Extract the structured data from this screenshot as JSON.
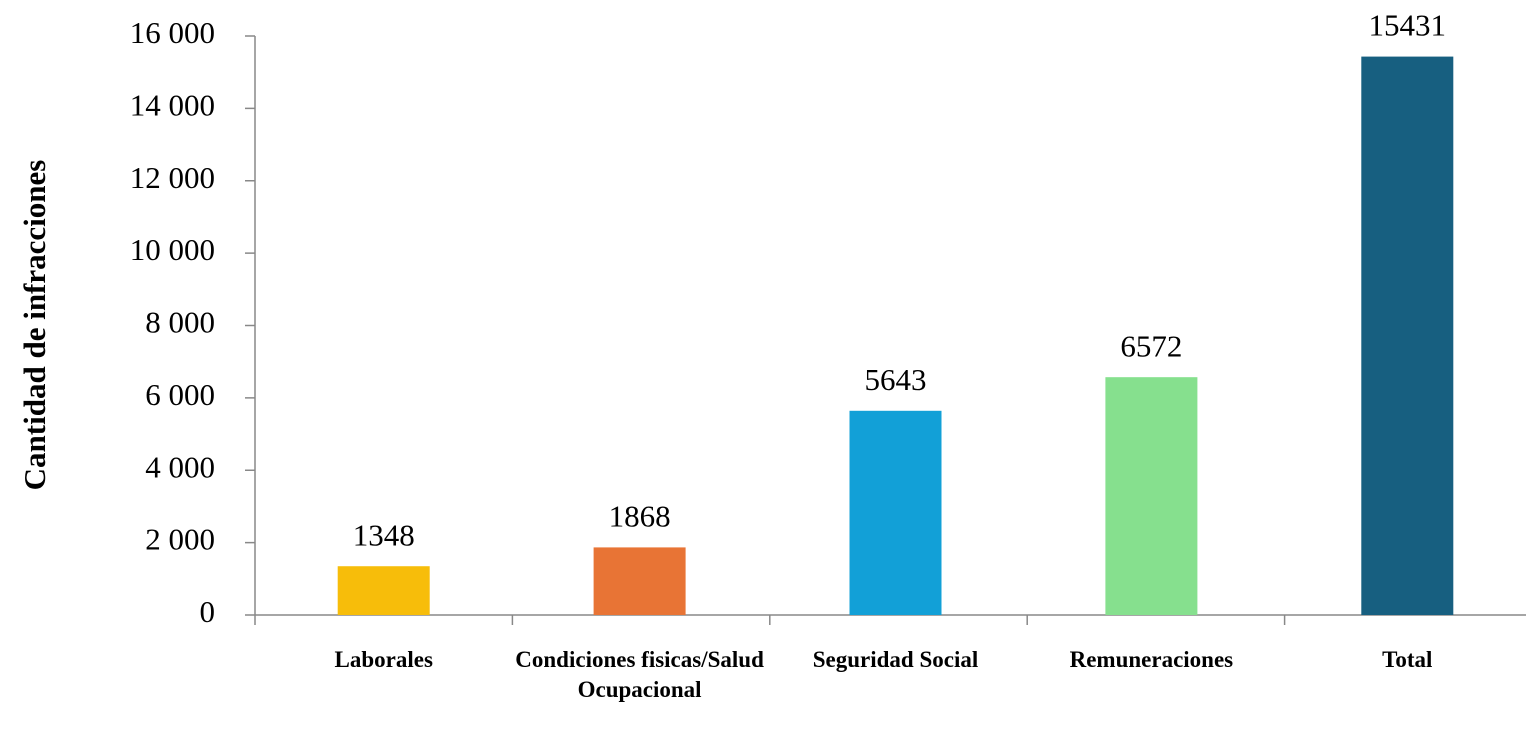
{
  "chart_data": {
    "type": "bar",
    "y_label": "Cantidad de infracciones",
    "categories": [
      "Laborales",
      "Condiciones fisicas/Salud Ocupacional",
      "Seguridad Social",
      "Remuneraciones",
      "Total"
    ],
    "values": [
      1348,
      1868,
      5643,
      6572,
      15431
    ],
    "colors": [
      "#f7bd0a",
      "#e87435",
      "#12a0d7",
      "#86e08e",
      "#175f80"
    ],
    "ylim": [
      0,
      16000
    ],
    "yticks": [
      0,
      {
        "value": 2000,
        "label": "2 000"
      },
      {
        "value": 4000,
        "label": "4 000"
      },
      {
        "value": 6000,
        "label": "6 000"
      },
      {
        "value": 8000,
        "label": "8 000"
      },
      {
        "value": 10000,
        "label": "10 000"
      },
      {
        "value": 12000,
        "label": "12 000"
      },
      {
        "value": 14000,
        "label": "14 000"
      },
      {
        "value": 16000,
        "label": "16 000"
      }
    ],
    "grid": false
  }
}
